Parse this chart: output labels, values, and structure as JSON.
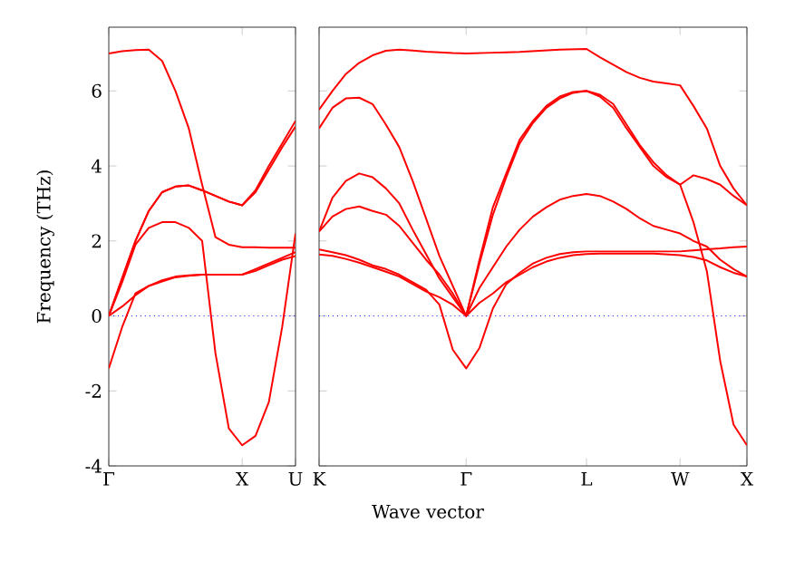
{
  "chart_data": [
    {
      "type": "line",
      "ylabel": "Frequency (THz)",
      "categories": [
        "Γ",
        null,
        null,
        null,
        null,
        null,
        null,
        null,
        null,
        null,
        "X",
        null,
        null,
        null,
        "U"
      ],
      "ylim": [
        -4,
        7.7
      ],
      "yticks": [
        -4,
        -2,
        0,
        2,
        4,
        6
      ],
      "grid": false,
      "marker": "none",
      "line_style": "solid",
      "ref_lines": [
        {
          "axis": "y",
          "value": 0,
          "color": "#0000ff",
          "line_style": "dotted"
        }
      ],
      "series": [
        {
          "color": "#ff0000",
          "values": [
            7.0,
            7.06,
            7.09,
            7.1,
            6.8,
            6.0,
            5.0,
            3.5,
            2.1,
            1.9,
            1.83,
            1.83,
            1.82,
            1.82,
            1.82
          ]
        },
        {
          "color": "#ff0000",
          "values": [
            0,
            1.0,
            2.0,
            2.8,
            3.3,
            3.45,
            3.48,
            3.35,
            3.2,
            3.05,
            2.95,
            3.35,
            4.0,
            4.6,
            5.2
          ]
        },
        {
          "color": "#ff0000",
          "values": [
            0,
            1.0,
            2.0,
            2.8,
            3.3,
            3.45,
            3.48,
            3.35,
            3.2,
            3.05,
            2.95,
            3.3,
            3.9,
            4.5,
            5.05
          ]
        },
        {
          "color": "#ff0000",
          "values": [
            0,
            0.9,
            1.9,
            2.35,
            2.5,
            2.5,
            2.35,
            2.0,
            -1.0,
            -3.0,
            -3.45,
            -3.2,
            -2.3,
            -0.3,
            2.2
          ]
        },
        {
          "color": "#ff0000",
          "values": [
            -1.4,
            -0.3,
            0.6,
            0.8,
            0.95,
            1.05,
            1.08,
            1.1,
            1.1,
            1.1,
            1.1,
            1.25,
            1.4,
            1.55,
            1.7
          ]
        },
        {
          "color": "#ff0000",
          "values": [
            0,
            0.25,
            0.55,
            0.8,
            0.92,
            1.03,
            1.07,
            1.1,
            1.1,
            1.1,
            1.1,
            1.2,
            1.35,
            1.5,
            1.6
          ]
        }
      ]
    },
    {
      "type": "line",
      "xlabel": "Wave vector",
      "tick_labels": "x",
      "categories": [
        "K",
        null,
        null,
        null,
        null,
        null,
        null,
        null,
        null,
        null,
        null,
        "Γ",
        null,
        null,
        null,
        null,
        null,
        null,
        null,
        null,
        "L",
        null,
        null,
        null,
        null,
        null,
        null,
        "W",
        null,
        null,
        null,
        null,
        "X"
      ],
      "ylim": [
        -4,
        7.7
      ],
      "yticks": [
        -4,
        -2,
        0,
        2,
        4,
        6
      ],
      "grid": false,
      "marker": "none",
      "line_style": "solid",
      "ref_lines": [
        {
          "axis": "y",
          "value": 0,
          "color": "#0000ff",
          "line_style": "dotted"
        }
      ],
      "series": [
        {
          "color": "#ff0000",
          "values": [
            5.5,
            6.0,
            6.45,
            6.75,
            6.95,
            7.07,
            7.1,
            7.08,
            7.05,
            7.03,
            7.01,
            7.0,
            7.01,
            7.02,
            7.03,
            7.04,
            7.06,
            7.08,
            7.1,
            7.11,
            7.12,
            6.9,
            6.7,
            6.5,
            6.35,
            6.25,
            6.2,
            6.15,
            5.6,
            5.0,
            4.0,
            3.4,
            2.95
          ]
        },
        {
          "color": "#ff0000",
          "values": [
            5.0,
            5.55,
            5.8,
            5.82,
            5.65,
            5.1,
            4.5,
            3.6,
            2.6,
            1.6,
            0.8,
            0,
            1.5,
            2.9,
            3.8,
            4.7,
            5.2,
            5.6,
            5.85,
            5.97,
            6.0,
            5.85,
            5.55,
            5.0,
            4.5,
            4.0,
            3.7,
            3.5,
            3.75,
            3.65,
            3.5,
            3.2,
            2.95
          ]
        },
        {
          "color": "#ff0000",
          "values": [
            2.25,
            3.15,
            3.6,
            3.8,
            3.7,
            3.4,
            3.0,
            2.3,
            1.65,
            1.0,
            0.5,
            0,
            1.4,
            2.7,
            3.7,
            4.6,
            5.15,
            5.55,
            5.8,
            5.95,
            6.0,
            5.9,
            5.65,
            5.1,
            4.55,
            4.1,
            3.75,
            3.5,
            2.5,
            1.2,
            -1.2,
            -2.9,
            -3.45
          ]
        },
        {
          "color": "#ff0000",
          "values": [
            2.25,
            2.65,
            2.85,
            2.92,
            2.8,
            2.7,
            2.4,
            1.95,
            1.5,
            1.1,
            0.6,
            0,
            0.75,
            1.3,
            1.85,
            2.3,
            2.65,
            2.9,
            3.1,
            3.2,
            3.25,
            3.2,
            3.05,
            2.85,
            2.6,
            2.4,
            2.3,
            2.2,
            2.0,
            1.85,
            1.5,
            1.25,
            1.05
          ]
        },
        {
          "color": "#ff0000",
          "values": [
            1.77,
            1.7,
            1.62,
            1.5,
            1.35,
            1.25,
            1.1,
            0.9,
            0.7,
            0.3,
            -0.9,
            -1.4,
            -0.85,
            0.2,
            0.85,
            1.15,
            1.4,
            1.55,
            1.65,
            1.7,
            1.72,
            1.72,
            1.72,
            1.72,
            1.72,
            1.72,
            1.72,
            1.72,
            1.75,
            1.78,
            1.8,
            1.83,
            1.85
          ]
        },
        {
          "color": "#ff0000",
          "values": [
            1.64,
            1.6,
            1.52,
            1.42,
            1.3,
            1.18,
            1.05,
            0.85,
            0.65,
            0.5,
            0.3,
            0,
            0.35,
            0.6,
            0.9,
            1.1,
            1.3,
            1.45,
            1.55,
            1.62,
            1.65,
            1.66,
            1.66,
            1.66,
            1.66,
            1.66,
            1.64,
            1.62,
            1.57,
            1.48,
            1.3,
            1.15,
            1.05
          ]
        }
      ]
    }
  ]
}
